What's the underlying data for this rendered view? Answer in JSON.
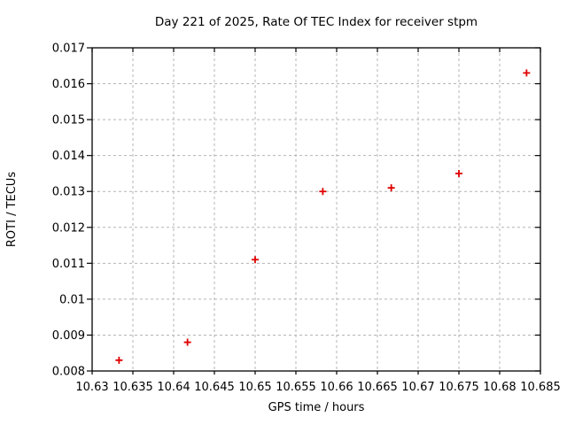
{
  "chart_data": {
    "type": "scatter",
    "title": "Day 221 of 2025, Rate Of TEC Index for receiver stpm",
    "xlabel": "GPS time / hours",
    "ylabel": "ROTI / TECUs",
    "x": [
      10.6333,
      10.6417,
      10.65,
      10.6583,
      10.6667,
      10.675,
      10.6833
    ],
    "y": [
      0.0083,
      0.0088,
      0.0111,
      0.013,
      0.0131,
      0.0135,
      0.0163
    ],
    "xlim": [
      10.63,
      10.685
    ],
    "ylim": [
      0.008,
      0.017
    ],
    "xticks": [
      10.63,
      10.635,
      10.64,
      10.645,
      10.65,
      10.655,
      10.66,
      10.665,
      10.67,
      10.675,
      10.68,
      10.685
    ],
    "xtick_labels": [
      "10.63",
      "10.635",
      "10.64",
      "10.645",
      "10.65",
      "10.655",
      "10.66",
      "10.665",
      "10.67",
      "10.675",
      "10.68",
      "10.685"
    ],
    "yticks": [
      0.008,
      0.009,
      0.01,
      0.011,
      0.012,
      0.013,
      0.014,
      0.015,
      0.016,
      0.017
    ],
    "ytick_labels": [
      "0.008",
      "0.009",
      "0.01",
      "0.011",
      "0.012",
      "0.013",
      "0.014",
      "0.015",
      "0.016",
      "0.017"
    ],
    "grid": true,
    "legend": "none",
    "marker": "plus",
    "colors": {
      "marker": "#e00000",
      "grid": "#b4b4b4",
      "border": "#000000",
      "text": "#000000",
      "background": "#ffffff"
    }
  }
}
